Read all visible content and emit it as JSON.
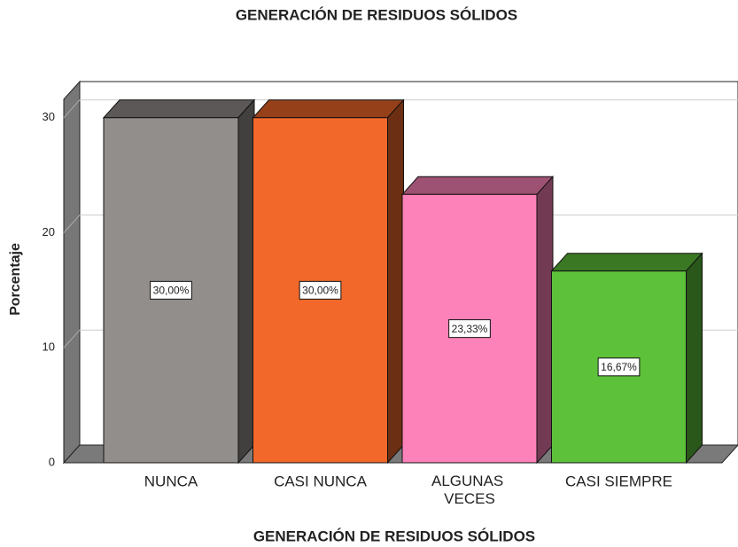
{
  "chart_data": {
    "type": "bar3d",
    "title": "GENERACIÓN DE RESIDUOS SÓLIDOS",
    "x_label": "GENERACIÓN DE RESIDUOS SÓLIDOS",
    "y_label": "Porcentaje",
    "categories": [
      "NUNCA",
      "CASI NUNCA",
      "ALGUNAS VECES",
      "CASI SIEMPRE"
    ],
    "values": [
      30,
      30,
      23.33,
      16.67
    ],
    "value_labels": [
      "30,00%",
      "30,00%",
      "23,33%",
      "16,67%"
    ],
    "colors": [
      "#928e8c",
      "#f2682a",
      "#fd82b9",
      "#5dc13a"
    ],
    "ylim": [
      0,
      31.6
    ],
    "yticks": [
      0,
      10,
      20,
      30
    ],
    "grid": true
  }
}
